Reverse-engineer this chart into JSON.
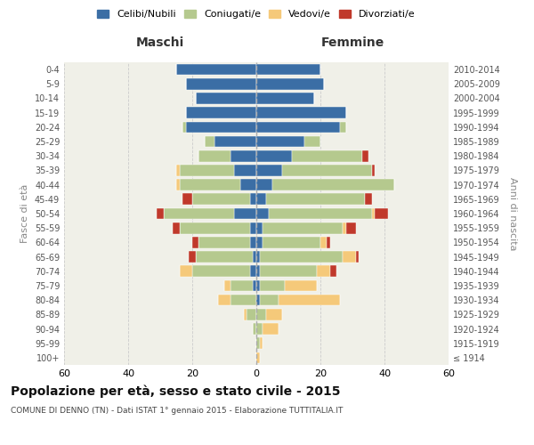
{
  "age_groups": [
    "100+",
    "95-99",
    "90-94",
    "85-89",
    "80-84",
    "75-79",
    "70-74",
    "65-69",
    "60-64",
    "55-59",
    "50-54",
    "45-49",
    "40-44",
    "35-39",
    "30-34",
    "25-29",
    "20-24",
    "15-19",
    "10-14",
    "5-9",
    "0-4"
  ],
  "birth_years": [
    "≤ 1914",
    "1915-1919",
    "1920-1924",
    "1925-1929",
    "1930-1934",
    "1935-1939",
    "1940-1944",
    "1945-1949",
    "1950-1954",
    "1955-1959",
    "1960-1964",
    "1965-1969",
    "1970-1974",
    "1975-1979",
    "1980-1984",
    "1985-1989",
    "1990-1994",
    "1995-1999",
    "2000-2004",
    "2005-2009",
    "2010-2014"
  ],
  "males_celibe": [
    0,
    0,
    0,
    0,
    0,
    1,
    2,
    1,
    2,
    2,
    7,
    2,
    5,
    7,
    8,
    13,
    22,
    22,
    19,
    22,
    25
  ],
  "males_coniugato": [
    0,
    0,
    1,
    3,
    8,
    7,
    18,
    18,
    16,
    22,
    22,
    18,
    19,
    17,
    10,
    3,
    1,
    0,
    0,
    0,
    0
  ],
  "males_vedovo": [
    0,
    0,
    0,
    1,
    4,
    2,
    4,
    0,
    0,
    0,
    0,
    0,
    1,
    1,
    0,
    0,
    0,
    0,
    0,
    0,
    0
  ],
  "males_divorziato": [
    0,
    0,
    0,
    0,
    0,
    0,
    0,
    2,
    2,
    2,
    2,
    3,
    0,
    0,
    0,
    0,
    0,
    0,
    0,
    0,
    0
  ],
  "fem_nubile": [
    0,
    0,
    0,
    0,
    1,
    1,
    1,
    1,
    2,
    2,
    4,
    3,
    5,
    8,
    11,
    15,
    26,
    28,
    18,
    21,
    20
  ],
  "fem_coniugata": [
    0,
    1,
    2,
    3,
    6,
    8,
    18,
    26,
    18,
    25,
    32,
    31,
    38,
    28,
    22,
    5,
    2,
    0,
    0,
    0,
    0
  ],
  "fem_vedova": [
    1,
    1,
    5,
    5,
    19,
    10,
    4,
    4,
    2,
    1,
    1,
    0,
    0,
    0,
    0,
    0,
    0,
    0,
    0,
    0,
    0
  ],
  "fem_divorziata": [
    0,
    0,
    0,
    0,
    0,
    0,
    2,
    1,
    1,
    3,
    4,
    2,
    0,
    1,
    2,
    0,
    0,
    0,
    0,
    0,
    0
  ],
  "color_celibe": "#3b6ea5",
  "color_coniugato": "#b5c98e",
  "color_vedovo": "#f5c97a",
  "color_divorziato": "#c0392b",
  "xlim": 60,
  "title": "Popolazione per età, sesso e stato civile - 2015",
  "subtitle": "COMUNE DI DENNO (TN) - Dati ISTAT 1° gennaio 2015 - Elaborazione TUTTITALIA.IT",
  "legend_labels": [
    "Celibi/Nubili",
    "Coniugati/e",
    "Vedovi/e",
    "Divorziati/e"
  ],
  "label_maschi": "Maschi",
  "label_femmine": "Femmine",
  "ylabel_left": "Fasce di età",
  "ylabel_right": "Anni di nascita",
  "bg_plot": "#f0f0e8",
  "bg_fig": "#ffffff"
}
